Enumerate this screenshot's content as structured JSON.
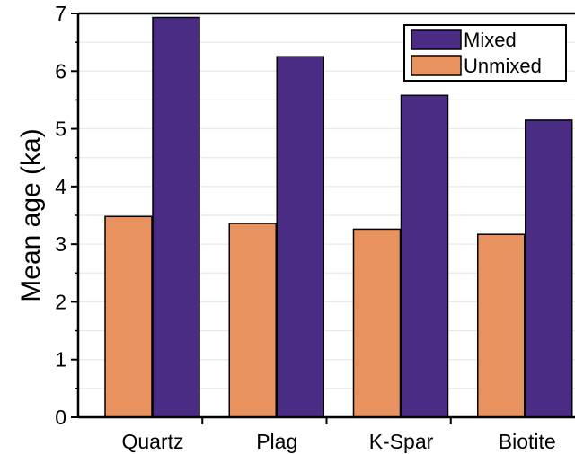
{
  "chart_data": {
    "type": "bar",
    "title": "",
    "xlabel": "",
    "ylabel": "Mean age (ka)",
    "categories": [
      "Quartz",
      "Plag",
      "K-Spar",
      "Biotite"
    ],
    "series": [
      {
        "name": "Unmixed",
        "color": "#E8935F",
        "values": [
          3.48,
          3.36,
          3.26,
          3.17
        ]
      },
      {
        "name": "Mixed",
        "color": "#4B2C85",
        "values": [
          6.93,
          6.25,
          5.58,
          5.15
        ]
      }
    ],
    "ylim": [
      0,
      7
    ],
    "yticks": [
      "0",
      "1",
      "2",
      "3",
      "4",
      "5",
      "6",
      "7"
    ],
    "grid": true,
    "grid_color": "#E8E8E8",
    "legend": {
      "placement": "top-right",
      "order": [
        "Mixed",
        "Unmixed"
      ]
    }
  }
}
